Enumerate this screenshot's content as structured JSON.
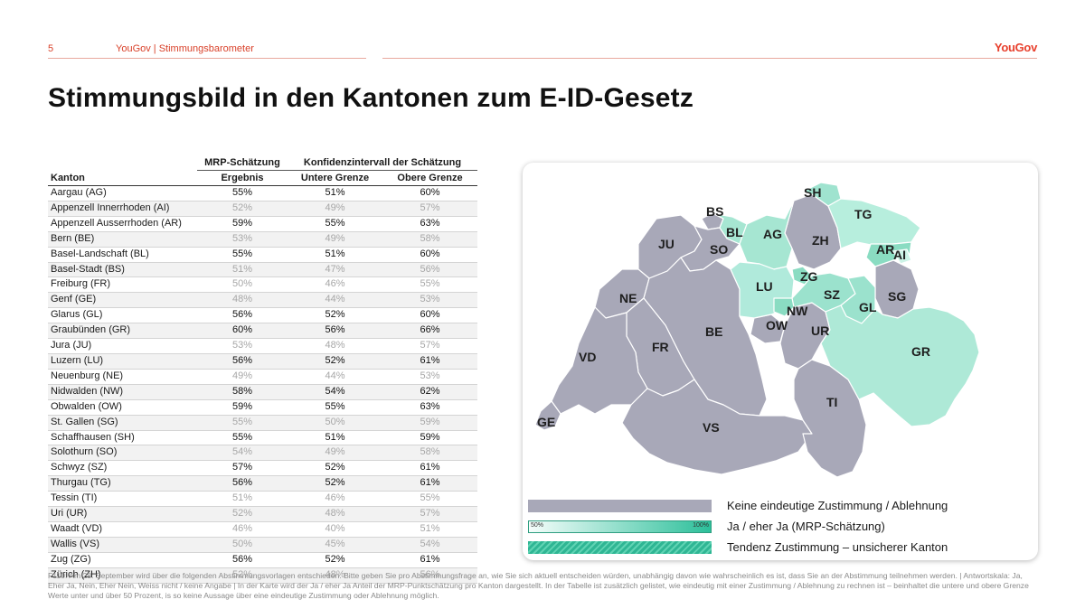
{
  "header": {
    "page_number": "5",
    "breadcrumb": "YouGov | Stimmungsbarometer",
    "logo": "YouGov"
  },
  "title": "Stimmungsbild in den Kantonen zum E-ID-Gesetz",
  "table": {
    "group_mrp": "MRP-Schätzung",
    "group_ki": "Konfidenzintervall der Schätzung",
    "col_kanton": "Kanton",
    "col_ergebnis": "Ergebnis",
    "col_unten": "Untere Grenze",
    "col_oben": "Obere Grenze",
    "rows": [
      {
        "name": "Aargau (AG)",
        "e": "55%",
        "u": "51%",
        "o": "60%",
        "sure": true
      },
      {
        "name": "Appenzell Innerrhoden (AI)",
        "e": "52%",
        "u": "49%",
        "o": "57%",
        "sure": false
      },
      {
        "name": "Appenzell Ausserrhoden (AR)",
        "e": "59%",
        "u": "55%",
        "o": "63%",
        "sure": true
      },
      {
        "name": "Bern (BE)",
        "e": "53%",
        "u": "49%",
        "o": "58%",
        "sure": false
      },
      {
        "name": "Basel-Landschaft (BL)",
        "e": "55%",
        "u": "51%",
        "o": "60%",
        "sure": true
      },
      {
        "name": "Basel-Stadt (BS)",
        "e": "51%",
        "u": "47%",
        "o": "56%",
        "sure": false
      },
      {
        "name": "Freiburg (FR)",
        "e": "50%",
        "u": "46%",
        "o": "55%",
        "sure": false
      },
      {
        "name": "Genf (GE)",
        "e": "48%",
        "u": "44%",
        "o": "53%",
        "sure": false
      },
      {
        "name": "Glarus (GL)",
        "e": "56%",
        "u": "52%",
        "o": "60%",
        "sure": true
      },
      {
        "name": "Graubünden (GR)",
        "e": "60%",
        "u": "56%",
        "o": "66%",
        "sure": true
      },
      {
        "name": "Jura (JU)",
        "e": "53%",
        "u": "48%",
        "o": "57%",
        "sure": false
      },
      {
        "name": "Luzern (LU)",
        "e": "56%",
        "u": "52%",
        "o": "61%",
        "sure": true
      },
      {
        "name": "Neuenburg (NE)",
        "e": "49%",
        "u": "44%",
        "o": "53%",
        "sure": false
      },
      {
        "name": "Nidwalden (NW)",
        "e": "58%",
        "u": "54%",
        "o": "62%",
        "sure": true
      },
      {
        "name": "Obwalden (OW)",
        "e": "59%",
        "u": "55%",
        "o": "63%",
        "sure": true
      },
      {
        "name": "St. Gallen (SG)",
        "e": "55%",
        "u": "50%",
        "o": "59%",
        "sure": false
      },
      {
        "name": "Schaffhausen (SH)",
        "e": "55%",
        "u": "51%",
        "o": "59%",
        "sure": true
      },
      {
        "name": "Solothurn (SO)",
        "e": "54%",
        "u": "49%",
        "o": "58%",
        "sure": false
      },
      {
        "name": "Schwyz (SZ)",
        "e": "57%",
        "u": "52%",
        "o": "61%",
        "sure": true
      },
      {
        "name": "Thurgau (TG)",
        "e": "56%",
        "u": "52%",
        "o": "61%",
        "sure": true
      },
      {
        "name": "Tessin (TI)",
        "e": "51%",
        "u": "46%",
        "o": "55%",
        "sure": false
      },
      {
        "name": "Uri (UR)",
        "e": "52%",
        "u": "48%",
        "o": "57%",
        "sure": false
      },
      {
        "name": "Waadt (VD)",
        "e": "46%",
        "u": "40%",
        "o": "51%",
        "sure": false
      },
      {
        "name": "Wallis (VS)",
        "e": "50%",
        "u": "45%",
        "o": "54%",
        "sure": false
      },
      {
        "name": "Zug (ZG)",
        "e": "56%",
        "u": "52%",
        "o": "61%",
        "sure": true
      },
      {
        "name": "Zürich (ZH)",
        "e": "52%",
        "u": "48%",
        "o": "56%",
        "sure": false
      }
    ]
  },
  "map": {
    "labels": {
      "SH": "SH",
      "BS": "BS",
      "TG": "TG",
      "BL": "BL",
      "AG": "AG",
      "JU": "JU",
      "SO": "SO",
      "ZH": "ZH",
      "AR": "AR",
      "AI": "AI",
      "ZG": "ZG",
      "NE": "NE",
      "LU": "LU",
      "SZ": "SZ",
      "SG": "SG",
      "NW": "NW",
      "GL": "GL",
      "OW": "OW",
      "UR": "UR",
      "BE": "BE",
      "FR": "FR",
      "GR": "GR",
      "VD": "VD",
      "TI": "TI",
      "GE": "GE",
      "VS": "VS"
    },
    "colors": {
      "no_clear": "#a8a8b8",
      "yes_light": "#c6f0e3",
      "yes_mid": "#a6e6d2",
      "yes_dark": "#8adcc2",
      "border": "#ffffff"
    }
  },
  "legend": {
    "no_clear": "Keine eindeutige Zustimmung / Ablehnung",
    "yes": "Ja / eher Ja (MRP-Schätzung)",
    "scale_min": "50%",
    "scale_max": "100%",
    "tendency": "Tendenz Zustimmung – unsicherer Kanton"
  },
  "footnote": "F110: Am 28. September wird über die folgenden Abstimmungsvorlagen entschieden. Bitte geben Sie pro Abstimmungsfrage an, wie Sie sich aktuell entscheiden würden, unabhängig davon wie wahrscheinlich es ist, dass Sie an der Abstimmung teilnehmen werden. | Antwortskala: Ja, Eher Ja, Nein, Eher Nein, Weiss nicht / keine Angabe | In der Karte wird der Ja / eher Ja Anteil der MRP-Punktschätzung pro Kanton dargestellt. In der Tabelle ist zusätzlich gelistet, wie eindeutig mit einer Zustimmung / Ablehnung zu rechnen ist – beinhaltet die untere und obere Grenze Werte unter und über 50 Prozent, is so keine Aussage über eine eindeutige Zustimmung oder Ablehnung möglich."
}
